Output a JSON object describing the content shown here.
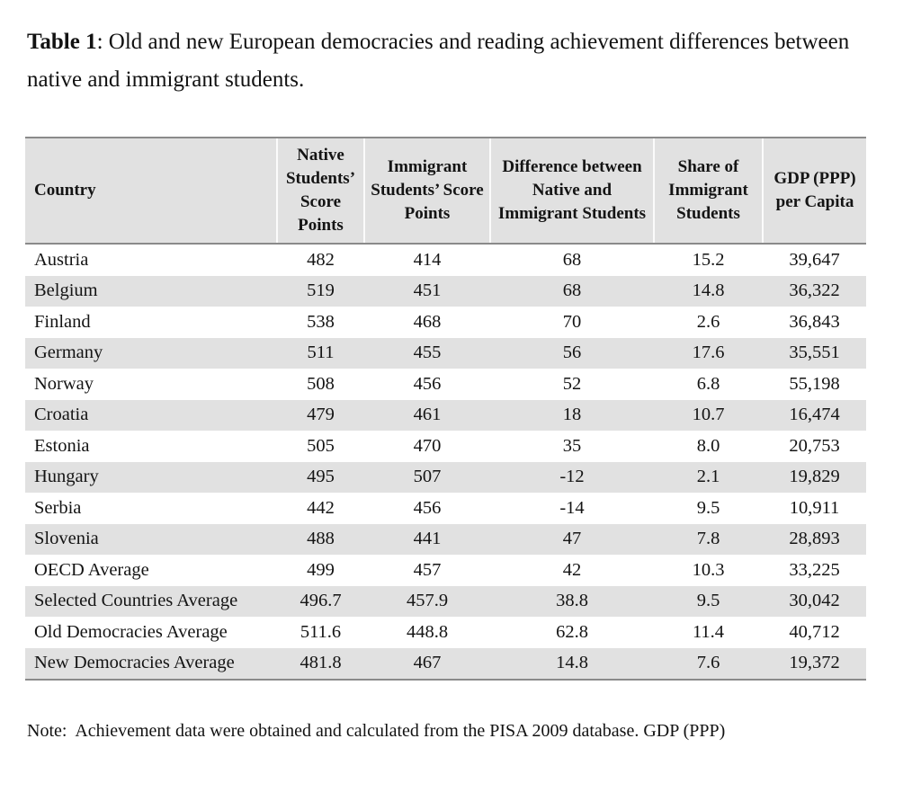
{
  "title": {
    "bold": "Table 1",
    "rest": ": Old and new European democracies and reading achievement differences between native and immigrant students."
  },
  "table": {
    "columns": [
      "Country",
      "Native Students’ Score Points",
      "Immigrant Students’ Score Points",
      "Difference between Native and Immigrant Students",
      "Share of Immigrant Students",
      "GDP (PPP) per Capita"
    ],
    "rows": [
      [
        "Austria",
        "482",
        "414",
        "68",
        "15.2",
        "39,647"
      ],
      [
        "Belgium",
        "519",
        "451",
        "68",
        "14.8",
        "36,322"
      ],
      [
        "Finland",
        "538",
        "468",
        "70",
        "2.6",
        "36,843"
      ],
      [
        "Germany",
        "511",
        "455",
        "56",
        "17.6",
        "35,551"
      ],
      [
        "Norway",
        "508",
        "456",
        "52",
        "6.8",
        "55,198"
      ],
      [
        "Croatia",
        "479",
        "461",
        "18",
        "10.7",
        "16,474"
      ],
      [
        "Estonia",
        "505",
        "470",
        "35",
        "8.0",
        "20,753"
      ],
      [
        "Hungary",
        "495",
        "507",
        "-12",
        "2.1",
        "19,829"
      ],
      [
        "Serbia",
        "442",
        "456",
        "-14",
        "9.5",
        "10,911"
      ],
      [
        "Slovenia",
        "488",
        "441",
        "47",
        "7.8",
        "28,893"
      ],
      [
        "OECD Average",
        "499",
        "457",
        "42",
        "10.3",
        "33,225"
      ],
      [
        "Selected Countries Average",
        "496.7",
        "457.9",
        "38.8",
        "9.5",
        "30,042"
      ],
      [
        "Old Democracies Average",
        "511.6",
        "448.8",
        "62.8",
        "11.4",
        "40,712"
      ],
      [
        "New Democracies Average",
        "481.8",
        "467",
        "14.8",
        "7.6",
        "19,372"
      ]
    ]
  },
  "note": {
    "text": "Note:  Achievement data were obtained and calculated from the PISA 2009 database. GDP (PPP)"
  },
  "colors": {
    "header_background": "#e1e1e1",
    "stripe_background": "#e1e1e1",
    "rule": "#8a8a8a"
  }
}
